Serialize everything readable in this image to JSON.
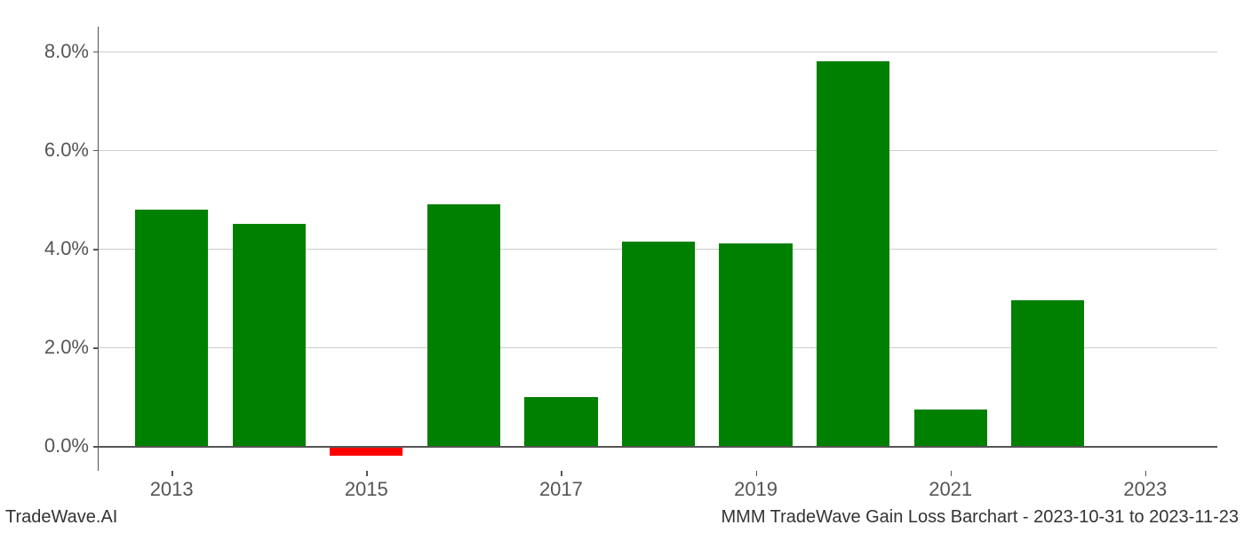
{
  "chart": {
    "type": "bar",
    "years": [
      2013,
      2014,
      2015,
      2016,
      2017,
      2018,
      2019,
      2020,
      2021,
      2022,
      2023
    ],
    "values": [
      4.8,
      4.5,
      -0.2,
      4.9,
      1.0,
      4.15,
      4.1,
      7.8,
      0.75,
      2.95,
      0.0
    ],
    "bar_colors": [
      "#008000",
      "#008000",
      "#ff0000",
      "#008000",
      "#008000",
      "#008000",
      "#008000",
      "#008000",
      "#008000",
      "#008000",
      "#008000"
    ],
    "ylim_min": -0.5,
    "ylim_max": 8.5,
    "yticks": [
      0.0,
      2.0,
      4.0,
      6.0,
      8.0
    ],
    "ytick_labels": [
      "0.0%",
      "2.0%",
      "4.0%",
      "6.0%",
      "8.0%"
    ],
    "xticks": [
      2013,
      2015,
      2017,
      2019,
      2021,
      2023
    ],
    "xtick_labels": [
      "2013",
      "2015",
      "2017",
      "2019",
      "2021",
      "2023"
    ],
    "bar_width": 0.75,
    "background_color": "#ffffff",
    "grid_color": "#cccccc",
    "axis_color": "#555555",
    "tick_fontsize": 22,
    "tick_color": "#555555"
  },
  "footer": {
    "left": "TradeWave.AI",
    "right": "MMM TradeWave Gain Loss Barchart - 2023-10-31 to 2023-11-23",
    "fontsize": 20,
    "color": "#333333"
  }
}
